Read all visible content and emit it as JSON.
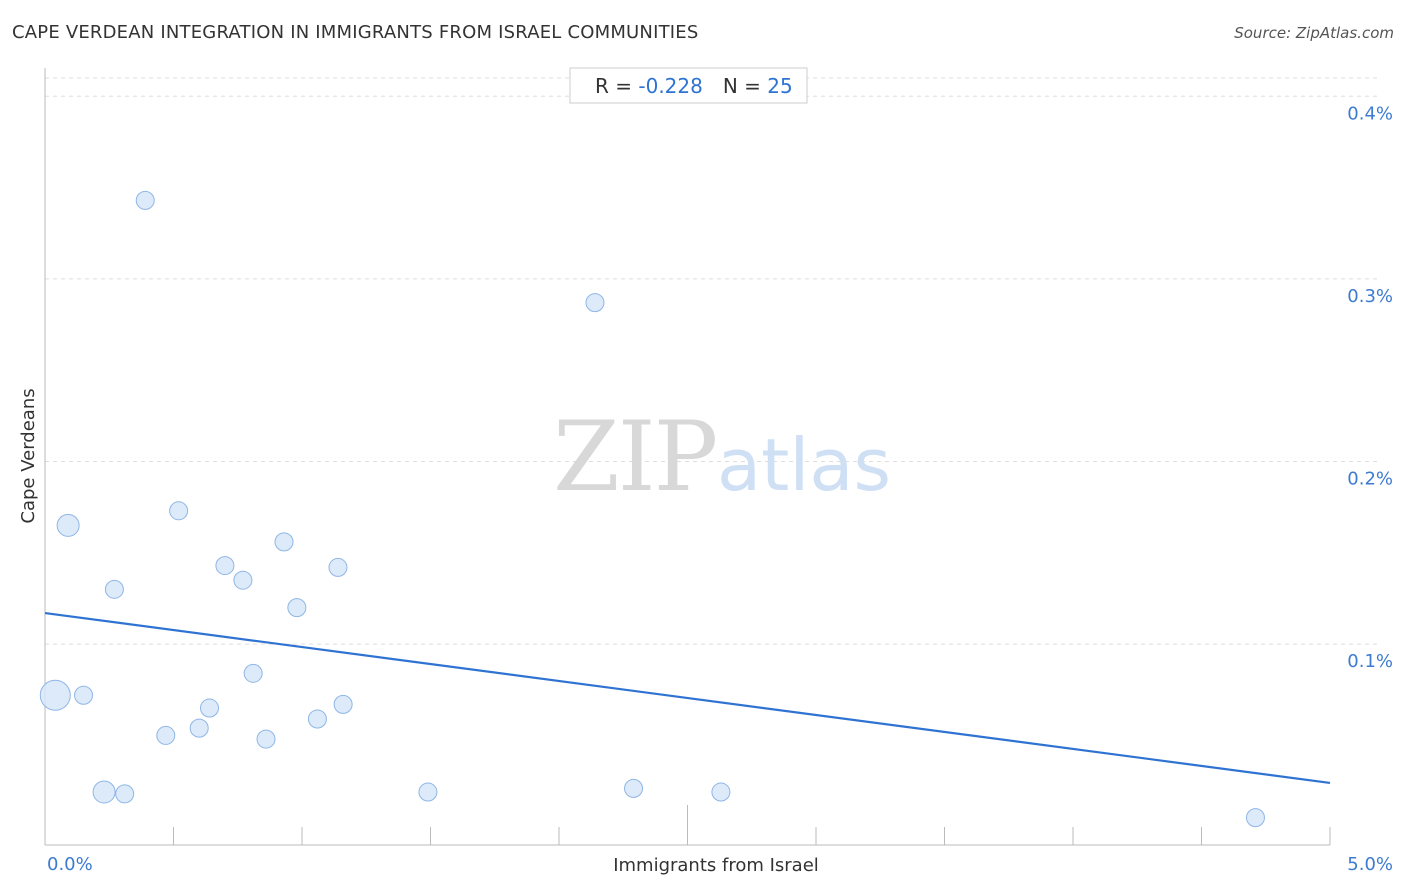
{
  "header": {
    "title": "CAPE VERDEAN INTEGRATION IN IMMIGRANTS FROM ISRAEL COMMUNITIES",
    "source": "Source: ZipAtlas.com"
  },
  "stats": {
    "r_label": "R = ",
    "r_value": "-0.228",
    "n_label": "N = ",
    "n_value": "25"
  },
  "watermark": {
    "zip": "ZIP",
    "atlas": "atlas"
  },
  "colors": {
    "point_fill": "#d6e6f8",
    "point_stroke": "#8fb6e6",
    "trend": "#2f73d2",
    "grid": "#dddddd",
    "tick_label": "#3d7bd1"
  },
  "chart_data": {
    "type": "scatter",
    "xlabel": "Immigrants from Israel",
    "ylabel": "Cape Verdeans",
    "xlim": [
      0.0,
      5.0
    ],
    "ylim": [
      -0.0001,
      0.0041
    ],
    "x_tick_labels": [
      {
        "value": 0.0,
        "label": "0.0%"
      },
      {
        "value": 5.0,
        "label": "5.0%"
      }
    ],
    "y_ticks": [
      {
        "value": 0.001,
        "label": "0.1%"
      },
      {
        "value": 0.002,
        "label": "0.2%"
      },
      {
        "value": 0.003,
        "label": "0.3%"
      },
      {
        "value": 0.004,
        "label": "0.4%"
      }
    ],
    "grid": true,
    "points": [
      {
        "x": 0.04,
        "y": 0.00072,
        "size": 3
      },
      {
        "x": 0.09,
        "y": 0.00165,
        "size": 2
      },
      {
        "x": 0.15,
        "y": 0.00072,
        "size": 1
      },
      {
        "x": 0.23,
        "y": 0.00019,
        "size": 2
      },
      {
        "x": 0.27,
        "y": 0.0013,
        "size": 1
      },
      {
        "x": 0.31,
        "y": 0.00018,
        "size": 1
      },
      {
        "x": 0.39,
        "y": 0.00343,
        "size": 1
      },
      {
        "x": 0.47,
        "y": 0.0005,
        "size": 1
      },
      {
        "x": 0.52,
        "y": 0.00173,
        "size": 1
      },
      {
        "x": 0.6,
        "y": 0.00054,
        "size": 1
      },
      {
        "x": 0.64,
        "y": 0.00065,
        "size": 1
      },
      {
        "x": 0.7,
        "y": 0.00143,
        "size": 1
      },
      {
        "x": 0.77,
        "y": 0.00135,
        "size": 1
      },
      {
        "x": 0.81,
        "y": 0.00084,
        "size": 1
      },
      {
        "x": 0.86,
        "y": 0.00048,
        "size": 1
      },
      {
        "x": 0.93,
        "y": 0.00156,
        "size": 1
      },
      {
        "x": 0.98,
        "y": 0.0012,
        "size": 1
      },
      {
        "x": 1.06,
        "y": 0.00059,
        "size": 1
      },
      {
        "x": 1.14,
        "y": 0.00142,
        "size": 1
      },
      {
        "x": 1.16,
        "y": 0.00067,
        "size": 1
      },
      {
        "x": 1.49,
        "y": 0.00019,
        "size": 1
      },
      {
        "x": 2.14,
        "y": 0.00287,
        "size": 1
      },
      {
        "x": 2.29,
        "y": 0.00021,
        "size": 1
      },
      {
        "x": 2.63,
        "y": 0.00019,
        "size": 1
      },
      {
        "x": 4.71,
        "y": 5e-05,
        "size": 1
      }
    ],
    "trendline": {
      "x": [
        0.0,
        5.0
      ],
      "y": [
        0.00117,
        0.00024
      ]
    }
  }
}
